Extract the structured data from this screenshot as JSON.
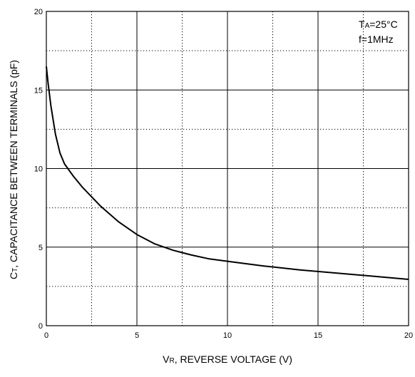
{
  "chart_data": {
    "type": "line",
    "xlabel": {
      "main": "V",
      "sub": "R",
      "rest": ", REVERSE VOLTAGE (V)"
    },
    "ylabel": {
      "main": "C",
      "sub": "T",
      "rest": ", CAPACITANCE BETWEEN TERMINALS (pF)"
    },
    "annotations": [
      {
        "main": "T",
        "sub": "A",
        "rest": "=25°C"
      },
      {
        "main": "f=1MHz",
        "sub": "",
        "rest": ""
      }
    ],
    "xlim": [
      0,
      20
    ],
    "ylim": [
      0,
      20
    ],
    "x_ticks": [
      "0",
      "5",
      "10",
      "15",
      "20"
    ],
    "y_ticks": [
      "0",
      "5",
      "10",
      "15",
      "20"
    ],
    "major_gridlines": [
      5,
      10,
      15
    ],
    "minor_gridlines": [
      2.5,
      7.5,
      12.5,
      17.5
    ],
    "grid": true,
    "series": [
      {
        "x": [
          0,
          0.1,
          0.25,
          0.5,
          0.75,
          1.0,
          1.5,
          2.0,
          3.0,
          4.0,
          5.0,
          6.0,
          7.0,
          8.0,
          9.0,
          10.0,
          12.0,
          14.0,
          16.0,
          18.0,
          20.0
        ],
        "y": [
          16.5,
          15.4,
          14.0,
          12.2,
          11.0,
          10.3,
          9.5,
          8.8,
          7.6,
          6.6,
          5.8,
          5.2,
          4.8,
          4.5,
          4.25,
          4.1,
          3.8,
          3.55,
          3.35,
          3.15,
          2.95
        ]
      }
    ]
  }
}
